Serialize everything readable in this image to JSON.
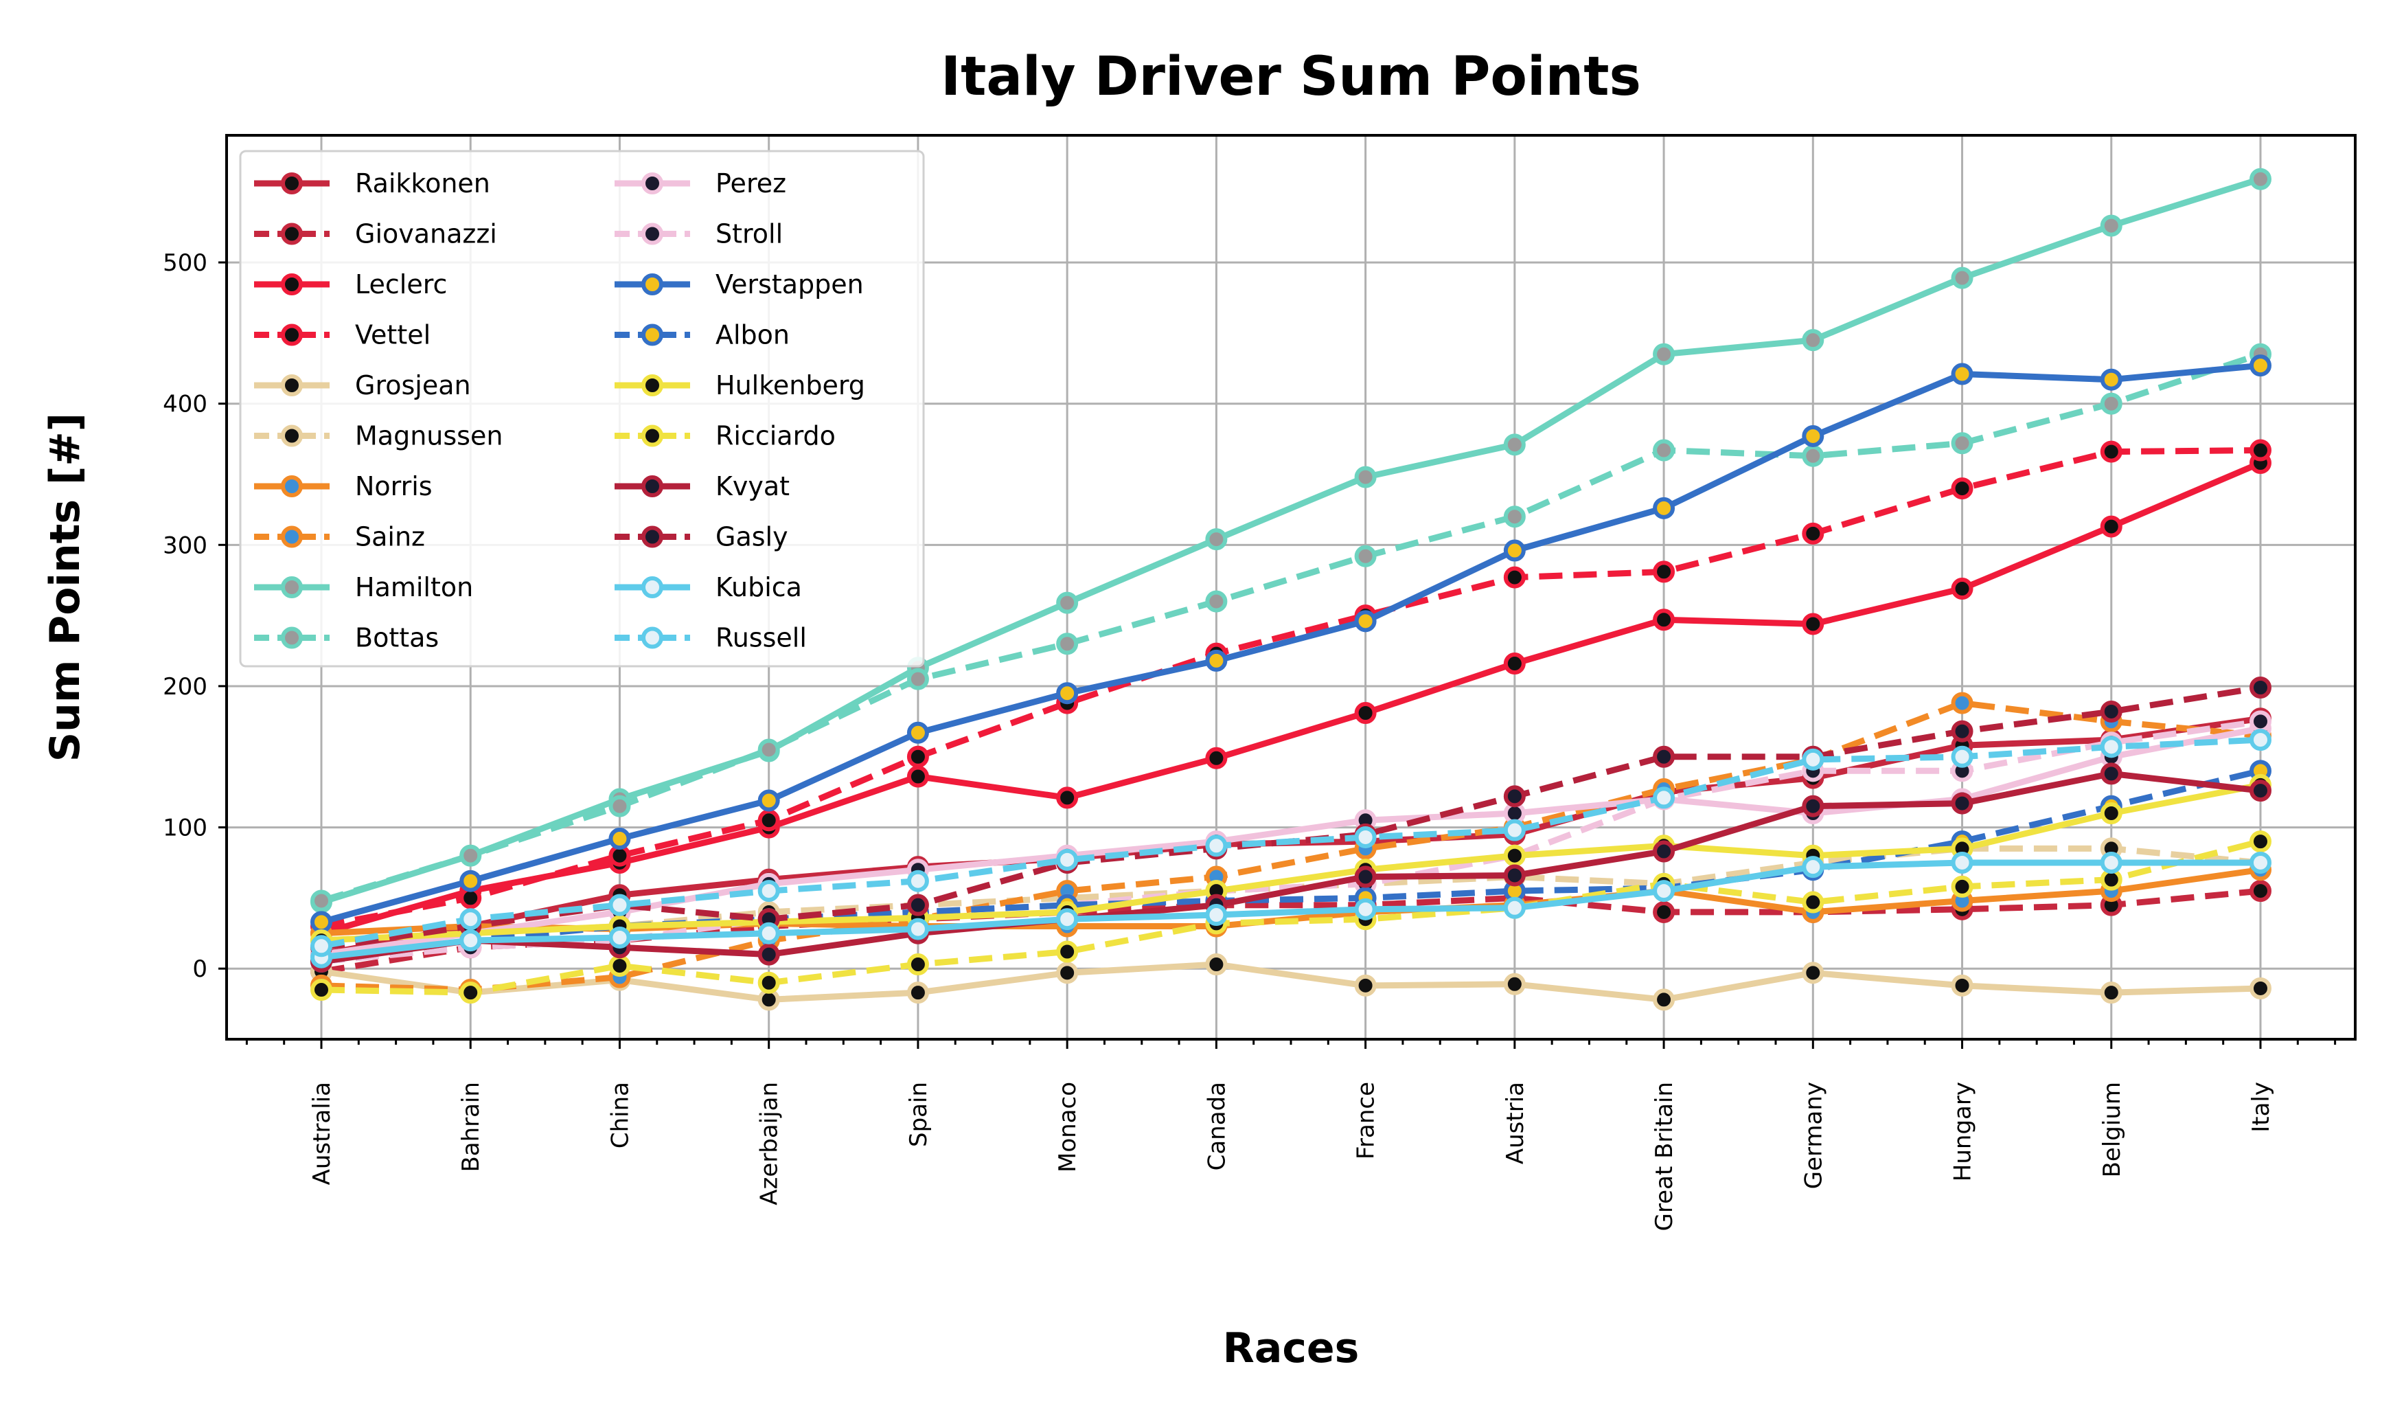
{
  "chart_data": {
    "type": "line",
    "title": "Italy Driver Sum Points",
    "xlabel": "Races",
    "ylabel": "Sum Points [#]",
    "categories": [
      "Australia",
      "Bahrain",
      "China",
      "Azerbaijan",
      "Spain",
      "Monaco",
      "Canada",
      "France",
      "Austria",
      "Great Britain",
      "Germany",
      "Hungary",
      "Belgium",
      "Italy"
    ],
    "ylim": [
      -50,
      590
    ],
    "yticks": [
      0,
      100,
      200,
      300,
      400,
      500
    ],
    "grid": true,
    "legend": {
      "placement": "top-left",
      "columns": 2
    },
    "series": [
      {
        "name": "Raikkonen",
        "color": "#c6283f",
        "marker_face": "#111111",
        "dash": "solid",
        "values": [
          10,
          30,
          52,
          63,
          72,
          78,
          88,
          90,
          95,
          125,
          135,
          158,
          162,
          177
        ]
      },
      {
        "name": "Giovanazzi",
        "color": "#c6283f",
        "marker_face": "#111111",
        "dash": "dash",
        "values": [
          -2,
          15,
          20,
          30,
          35,
          40,
          45,
          45,
          50,
          40,
          40,
          42,
          45,
          55
        ]
      },
      {
        "name": "Leclerc",
        "color": "#f01b3a",
        "marker_face": "#111111",
        "dash": "solid",
        "values": [
          25,
          55,
          75,
          100,
          136,
          121,
          149,
          181,
          216,
          247,
          244,
          269,
          313,
          358
        ]
      },
      {
        "name": "Vettel",
        "color": "#f01b3a",
        "marker_face": "#111111",
        "dash": "dash",
        "values": [
          30,
          50,
          80,
          105,
          150,
          188,
          223,
          250,
          277,
          281,
          308,
          340,
          366,
          367
        ]
      },
      {
        "name": "Grosjean",
        "color": "#e8d09f",
        "marker_face": "#111111",
        "dash": "solid",
        "values": [
          -2,
          -17,
          -8,
          -22,
          -17,
          -3,
          3,
          -12,
          -11,
          -22,
          -3,
          -12,
          -17,
          -14
        ]
      },
      {
        "name": "Magnussen",
        "color": "#e8d09f",
        "marker_face": "#111111",
        "dash": "dash",
        "values": [
          20,
          25,
          30,
          40,
          45,
          50,
          55,
          60,
          65,
          60,
          75,
          85,
          85,
          75
        ]
      },
      {
        "name": "Norris",
        "color": "#f28a26",
        "marker_face": "#3d8fd6",
        "dash": "solid",
        "values": [
          25,
          30,
          28,
          32,
          30,
          30,
          30,
          40,
          45,
          55,
          40,
          48,
          55,
          70
        ]
      },
      {
        "name": "Sainz",
        "color": "#f28a26",
        "marker_face": "#3d8fd6",
        "dash": "dash",
        "values": [
          -12,
          -15,
          -6,
          20,
          35,
          55,
          65,
          85,
          100,
          127,
          148,
          188,
          175,
          165
        ]
      },
      {
        "name": "Hamilton",
        "color": "#6cd3bf",
        "marker_face": "#9a9a9a",
        "dash": "solid",
        "values": [
          47,
          80,
          120,
          154,
          213,
          259,
          304,
          348,
          371,
          435,
          445,
          489,
          526,
          559
        ]
      },
      {
        "name": "Bottas",
        "color": "#6cd3bf",
        "marker_face": "#9a9a9a",
        "dash": "dash",
        "values": [
          48,
          80,
          115,
          155,
          205,
          230,
          260,
          292,
          320,
          367,
          363,
          372,
          400,
          435
        ]
      },
      {
        "name": "Perez",
        "color": "#f1c1dc",
        "marker_face": "#1a1a2e",
        "dash": "solid",
        "values": [
          10,
          25,
          40,
          60,
          70,
          80,
          90,
          105,
          110,
          120,
          110,
          120,
          150,
          170
        ]
      },
      {
        "name": "Stroll",
        "color": "#f1c1dc",
        "marker_face": "#1a1a2e",
        "dash": "dash",
        "values": [
          5,
          15,
          20,
          35,
          40,
          45,
          55,
          60,
          80,
          120,
          140,
          140,
          160,
          175
        ]
      },
      {
        "name": "Verstappen",
        "color": "#3470c6",
        "marker_face": "#f4c01b",
        "dash": "solid",
        "values": [
          33,
          62,
          92,
          119,
          167,
          195,
          218,
          246,
          296,
          326,
          377,
          421,
          417,
          427
        ]
      },
      {
        "name": "Albon",
        "color": "#3470c6",
        "marker_face": "#f4c01b",
        "dash": "dash",
        "values": [
          5,
          20,
          30,
          35,
          40,
          45,
          48,
          50,
          55,
          57,
          70,
          90,
          115,
          140
        ]
      },
      {
        "name": "Hulkenberg",
        "color": "#f0e241",
        "marker_face": "#111111",
        "dash": "solid",
        "values": [
          20,
          25,
          30,
          33,
          36,
          40,
          55,
          70,
          80,
          87,
          80,
          85,
          110,
          130
        ]
      },
      {
        "name": "Ricciardo",
        "color": "#f0e241",
        "marker_face": "#111111",
        "dash": "dash",
        "values": [
          -15,
          -17,
          2,
          -10,
          3,
          12,
          32,
          35,
          43,
          60,
          47,
          58,
          63,
          90
        ]
      },
      {
        "name": "Kvyat",
        "color": "#b4213b",
        "marker_face": "#1a1a2e",
        "dash": "solid",
        "values": [
          5,
          20,
          15,
          10,
          25,
          35,
          45,
          65,
          66,
          83,
          115,
          117,
          138,
          126
        ]
      },
      {
        "name": "Gasly",
        "color": "#b4213b",
        "marker_face": "#1a1a2e",
        "dash": "dash",
        "values": [
          15,
          30,
          45,
          35,
          45,
          75,
          85,
          95,
          122,
          150,
          150,
          168,
          182,
          199
        ]
      },
      {
        "name": "Kubica",
        "color": "#5ecbea",
        "marker_face": "#e4f1f8",
        "dash": "solid",
        "values": [
          8,
          20,
          22,
          25,
          28,
          35,
          38,
          42,
          43,
          55,
          72,
          75,
          75,
          75
        ]
      },
      {
        "name": "Russell",
        "color": "#5ecbea",
        "marker_face": "#e4f1f8",
        "dash": "dash",
        "values": [
          16,
          35,
          45,
          55,
          62,
          77,
          87,
          93,
          98,
          121,
          148,
          150,
          157,
          162
        ]
      }
    ]
  }
}
